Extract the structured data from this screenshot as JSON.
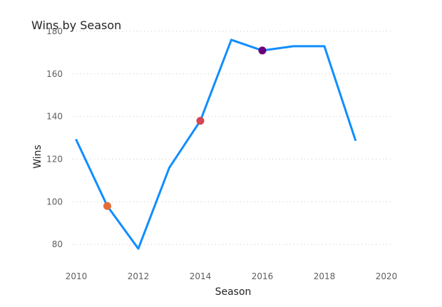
{
  "chart_data": {
    "type": "line",
    "title": "Wins by Season",
    "xlabel": "Season",
    "ylabel": "Wins",
    "xlim": [
      2010,
      2020
    ],
    "ylim": [
      72,
      182
    ],
    "x_ticks": [
      2010,
      2012,
      2014,
      2016,
      2018,
      2020
    ],
    "y_ticks": [
      80,
      100,
      120,
      140,
      160,
      180
    ],
    "grid": true,
    "series": [
      {
        "color": "#118dff",
        "x": [
          2010,
          2011,
          2012,
          2013,
          2014,
          2015,
          2016,
          2017,
          2018,
          2019
        ],
        "values": [
          129,
          98,
          78,
          116,
          138,
          176,
          171,
          173,
          173,
          129
        ]
      }
    ],
    "highlighted_points": [
      {
        "x": 2011,
        "y": 98,
        "color": "#e66c37"
      },
      {
        "x": 2014,
        "y": 138,
        "color": "#d64550"
      },
      {
        "x": 2016,
        "y": 171,
        "color": "#6b007b"
      }
    ]
  }
}
